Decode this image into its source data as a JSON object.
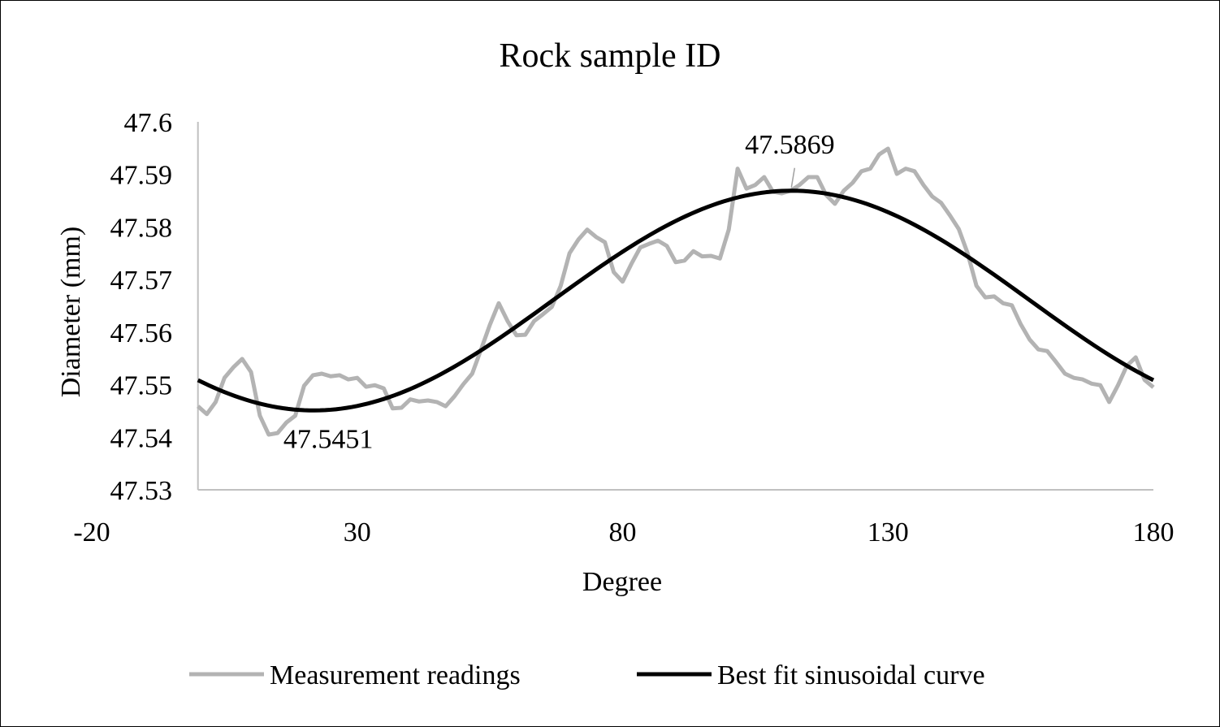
{
  "chart_data": {
    "type": "line",
    "title": "Rock sample ID",
    "xlabel": "Degree",
    "ylabel": "Diameter (mm)",
    "xlim": [
      -20,
      180
    ],
    "ylim": [
      47.53,
      47.6
    ],
    "x_ticks": [
      "-20",
      "30",
      "80",
      "130",
      "180"
    ],
    "x_tick_values": [
      -20,
      30,
      80,
      130,
      180
    ],
    "y_ticks": [
      "47.53",
      "47.54",
      "47.55",
      "47.56",
      "47.57",
      "47.58",
      "47.59",
      "47.6"
    ],
    "y_tick_values": [
      47.53,
      47.54,
      47.55,
      47.56,
      47.57,
      47.58,
      47.59,
      47.6
    ],
    "grid": false,
    "legend_position": "bottom",
    "series": [
      {
        "name": "Measurement readings",
        "color": "#b3b3b3",
        "x_start": 0,
        "x_step": 1.6667,
        "values": [
          47.5459,
          47.5444,
          47.5467,
          47.5513,
          47.5533,
          47.5549,
          47.5524,
          47.5441,
          47.5405,
          47.5408,
          47.5428,
          47.5441,
          47.5498,
          47.5518,
          47.5521,
          47.5516,
          47.5518,
          47.551,
          47.5513,
          47.5496,
          47.5499,
          47.5493,
          47.5455,
          47.5456,
          47.5472,
          47.5468,
          47.547,
          47.5467,
          47.5459,
          47.5478,
          47.5501,
          47.5521,
          47.5567,
          47.5614,
          47.5655,
          47.5621,
          47.5594,
          47.5595,
          47.5621,
          47.5634,
          47.5648,
          47.5688,
          47.575,
          47.5776,
          47.5795,
          47.5781,
          47.5771,
          47.5714,
          47.5696,
          47.573,
          47.5761,
          47.5768,
          47.5774,
          47.5764,
          47.5733,
          47.5736,
          47.5754,
          47.5744,
          47.5745,
          47.574,
          47.5795,
          47.5911,
          47.5873,
          47.588,
          47.5895,
          47.5867,
          47.5864,
          47.5869,
          47.588,
          47.5895,
          47.5895,
          47.5861,
          47.5844,
          47.5869,
          47.5884,
          47.5906,
          47.5911,
          47.5938,
          47.5949,
          47.5901,
          47.5911,
          47.5906,
          47.588,
          47.5858,
          47.5846,
          47.5822,
          47.5796,
          47.575,
          47.5688,
          47.5666,
          47.5668,
          47.5655,
          47.5651,
          47.5615,
          47.5586,
          47.5567,
          47.5564,
          47.5543,
          47.5521,
          47.5513,
          47.551,
          47.5502,
          47.5499,
          47.5467,
          47.5499,
          47.5536,
          47.5552,
          47.5509,
          47.5495
        ]
      },
      {
        "name": "Best fit sinusoidal curve",
        "color": "#000000",
        "model": {
          "mean": 47.566,
          "amplitude": 0.0209,
          "period": 180,
          "phase": 66.8,
          "x_range": [
            0,
            180
          ]
        }
      }
    ],
    "annotations": [
      {
        "text": "47.5869",
        "x": 111.8,
        "y": 47.5869
      },
      {
        "text": "47.5451",
        "x": 21.8,
        "y": 47.5451
      }
    ]
  }
}
